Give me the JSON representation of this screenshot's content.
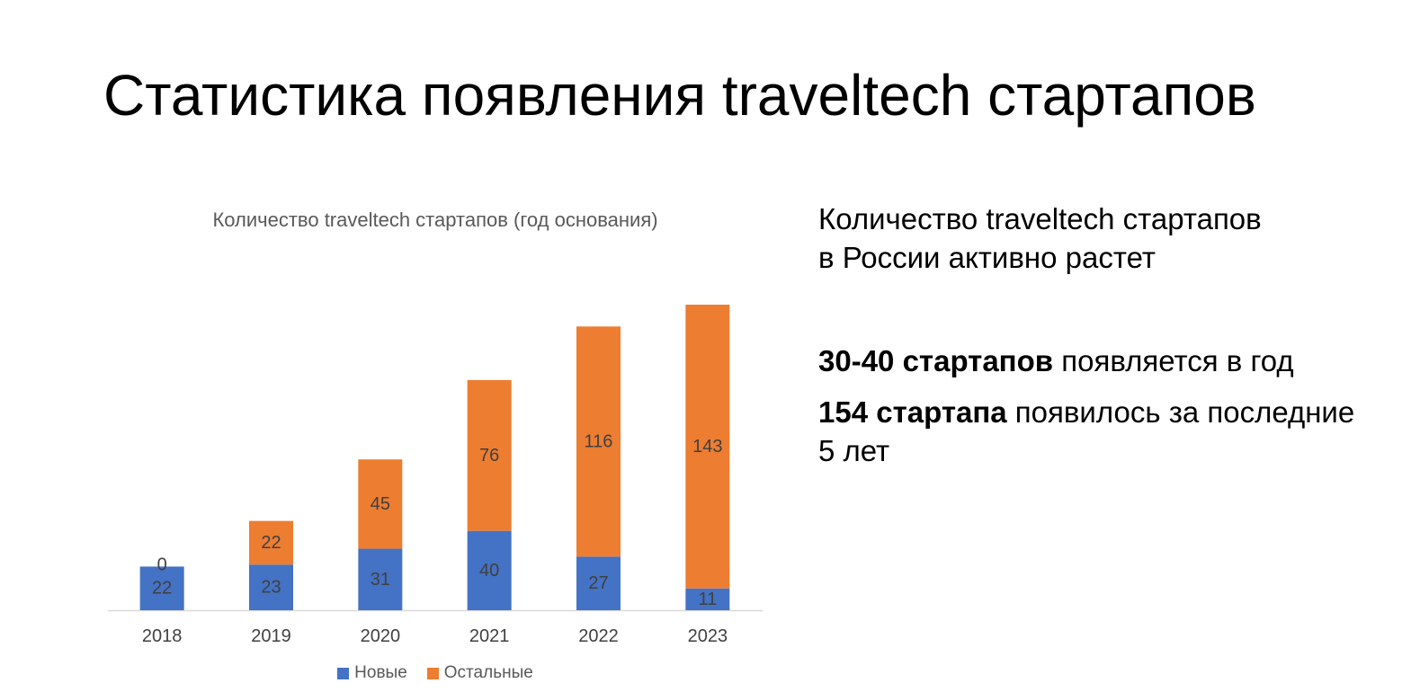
{
  "slide": {
    "title": "Статистика появления traveltech стартапов"
  },
  "side_panel": {
    "headline_line1": "Количество traveltech стартапов",
    "headline_line2": "в России активно растет",
    "fact1_bold": "30-40 стартапов",
    "fact1_rest": " появляется в год",
    "fact2_bold": "154 стартапа",
    "fact2_rest": " появилось за последние 5 лет"
  },
  "colors": {
    "new": "#4472C4",
    "other": "#ED7D31",
    "label_text": "#404040",
    "axis_text": "#404040",
    "axis_line": "#D9D9D9"
  },
  "chart_data": {
    "type": "bar",
    "stacked": true,
    "title": "Количество traveltech стартапов (год основания)",
    "categories": [
      "2018",
      "2019",
      "2020",
      "2021",
      "2022",
      "2023"
    ],
    "series": [
      {
        "name": "Новые",
        "values": [
          22,
          23,
          31,
          40,
          27,
          11
        ]
      },
      {
        "name": "Остальные",
        "values": [
          0,
          22,
          45,
          76,
          116,
          143
        ]
      }
    ],
    "ylim": [
      0,
      155
    ],
    "grid": false,
    "legend": "bottom",
    "data_labels": true
  }
}
